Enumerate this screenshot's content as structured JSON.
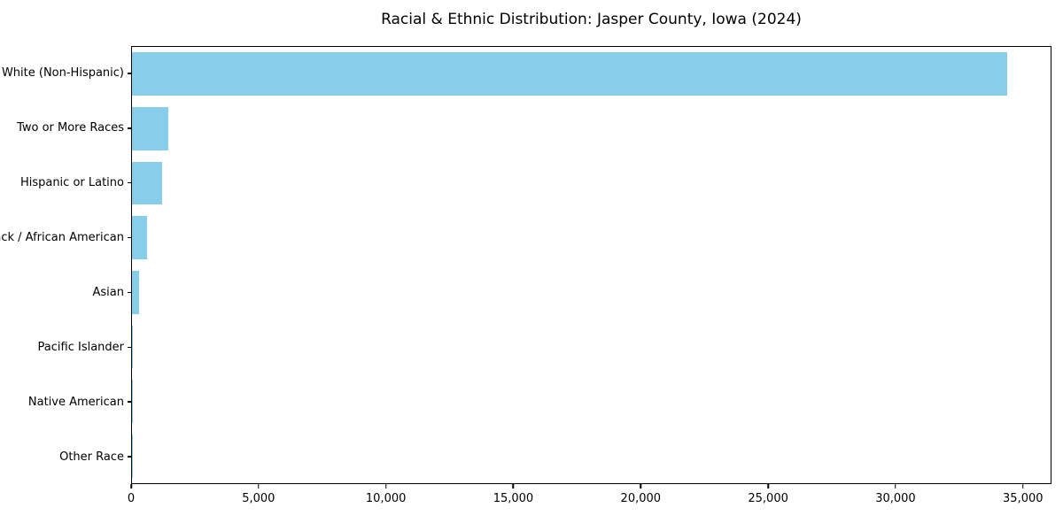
{
  "figure": {
    "background": "#ffffff",
    "text_color": "#000000",
    "spine_color": "#000000"
  },
  "chart_data": {
    "type": "bar",
    "orientation": "horizontal",
    "title": "Racial & Ethnic Distribution: Jasper County, Iowa (2024)",
    "categories": [
      "White (Non-Hispanic)",
      "Two or More Races",
      "Hispanic or Latino",
      "Black / African American",
      "Asian",
      "Pacific Islander",
      "Native American",
      "Other Race"
    ],
    "values": [
      34400,
      1430,
      1190,
      580,
      270,
      40,
      25,
      10
    ],
    "bar_color": "#87CEEB",
    "xlabel": "",
    "ylabel": "",
    "xlim": [
      0,
      36120
    ],
    "x_ticks": [
      0,
      5000,
      10000,
      15000,
      20000,
      25000,
      30000,
      35000
    ],
    "x_tick_labels": [
      "0",
      "5,000",
      "10,000",
      "15,000",
      "20,000",
      "25,000",
      "30,000",
      "35,000"
    ],
    "grid": false,
    "legend": "none"
  }
}
